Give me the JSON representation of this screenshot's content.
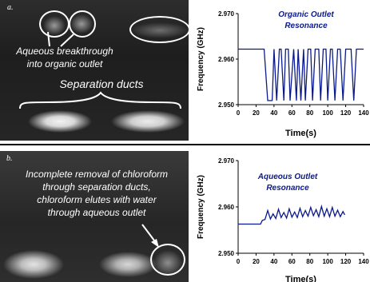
{
  "panel_a": {
    "label": "a.",
    "annotation_breakthrough": [
      "Aqueous breakthrough",
      "into organic outlet"
    ],
    "annotation_ducts": "Separation ducts"
  },
  "panel_b": {
    "label": "b.",
    "annotation_lines": [
      "Incomplete removal of chloroform",
      "through separation ducts,",
      "chloroform elutes with water",
      "through aqueous outlet"
    ]
  },
  "chart_data": [
    {
      "type": "line",
      "title": [
        "Organic Outlet",
        "Resonance"
      ],
      "xlabel": "Time(s)",
      "ylabel": "Frequency (GHz)",
      "xlim": [
        0,
        140
      ],
      "ylim": [
        2.95,
        2.97
      ],
      "xticks": [
        "0",
        "20",
        "40",
        "60",
        "80",
        "100",
        "120",
        "140"
      ],
      "yticks": [
        "2.950",
        "2.960",
        "2.970"
      ],
      "color": "#0a1a8c",
      "x": [
        0,
        29,
        33,
        38,
        40,
        43,
        46,
        48,
        51,
        53,
        56,
        58,
        62,
        65,
        67,
        70,
        73,
        75,
        78,
        81,
        83,
        86,
        90,
        92,
        95,
        98,
        100,
        103,
        105,
        108,
        111,
        114,
        117,
        120,
        123,
        126,
        129,
        132,
        135,
        140
      ],
      "y": [
        2.9622,
        2.9622,
        2.9509,
        2.9509,
        2.9622,
        2.9509,
        2.9622,
        2.9622,
        2.9509,
        2.9622,
        2.9622,
        2.9509,
        2.9622,
        2.9509,
        2.9622,
        2.9509,
        2.9622,
        2.9509,
        2.9622,
        2.9622,
        2.9509,
        2.9622,
        2.9622,
        2.9509,
        2.9622,
        2.9622,
        2.9509,
        2.9622,
        2.9622,
        2.9509,
        2.9622,
        2.9622,
        2.9509,
        2.9622,
        2.9622,
        2.9622,
        2.9509,
        2.9622,
        2.9622,
        2.9622
      ]
    },
    {
      "type": "line",
      "title": [
        "Aqueous Outlet",
        "Resonance"
      ],
      "xlabel": "Time(s)",
      "ylabel": "Frequency (GHz)",
      "xlim": [
        0,
        140
      ],
      "ylim": [
        2.95,
        2.97
      ],
      "xticks": [
        "0",
        "20",
        "40",
        "60",
        "80",
        "100",
        "120",
        "140"
      ],
      "yticks": [
        "2.950",
        "2.960",
        "2.970"
      ],
      "color": "#0a1a8c",
      "x": [
        0,
        25,
        27,
        30,
        33,
        36,
        39,
        42,
        45,
        48,
        51,
        54,
        57,
        60,
        63,
        66,
        69,
        72,
        75,
        78,
        81,
        84,
        87,
        90,
        93,
        96,
        99,
        102,
        105,
        108,
        111,
        114,
        117,
        119
      ],
      "y": [
        2.9563,
        2.9563,
        2.9571,
        2.9573,
        2.9592,
        2.9574,
        2.9585,
        2.9575,
        2.9595,
        2.9577,
        2.9588,
        2.9576,
        2.9596,
        2.9578,
        2.9589,
        2.9577,
        2.9597,
        2.9579,
        2.9592,
        2.958,
        2.9599,
        2.9581,
        2.9594,
        2.9579,
        2.9601,
        2.958,
        2.9596,
        2.9579,
        2.9599,
        2.958,
        2.9593,
        2.9579,
        2.959,
        2.9583
      ]
    }
  ]
}
